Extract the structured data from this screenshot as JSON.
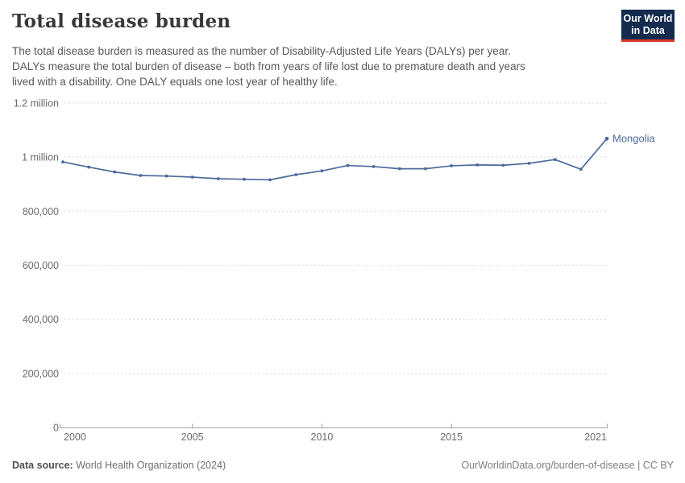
{
  "header": {
    "title": "Total disease burden",
    "subtitle_lines": [
      "The total disease burden is measured as the number of Disability-Adjusted Life Years (DALYs) per year.",
      "DALYs measure the total burden of disease – both from years of life lost due to premature death and years",
      "lived with a disability. One DALY equals one lost year of healthy life."
    ],
    "logo": {
      "line1": "Our World",
      "line2": "in Data",
      "bg_color": "#132b4d",
      "stripe_color": "#d8382f",
      "text_color": "#ffffff"
    }
  },
  "chart_data": {
    "type": "line",
    "title": "Total disease burden",
    "entity": "Mongolia",
    "x": [
      2000,
      2001,
      2002,
      2003,
      2004,
      2005,
      2006,
      2007,
      2008,
      2009,
      2010,
      2011,
      2012,
      2013,
      2014,
      2015,
      2016,
      2017,
      2018,
      2019,
      2020,
      2021
    ],
    "series": [
      {
        "name": "Mongolia",
        "color": "#4c6a9c",
        "values": [
          982000,
          963000,
          945000,
          932000,
          930000,
          926000,
          920000,
          918000,
          916000,
          935000,
          949000,
          969000,
          965000,
          957000,
          957000,
          968000,
          971000,
          970000,
          977000,
          991000,
          955000,
          1068000
        ]
      }
    ],
    "xlim": [
      2000,
      2021
    ],
    "ylim": [
      0,
      1200000
    ],
    "yticks": [
      {
        "value": 0,
        "label": "0"
      },
      {
        "value": 200000,
        "label": "200,000"
      },
      {
        "value": 400000,
        "label": "400,000"
      },
      {
        "value": 600000,
        "label": "600,000"
      },
      {
        "value": 800000,
        "label": "800,000"
      },
      {
        "value": 1000000,
        "label": "1 million"
      },
      {
        "value": 1200000,
        "label": "1.2 million"
      }
    ],
    "xticks": [
      {
        "value": 2000,
        "label": "2000"
      },
      {
        "value": 2005,
        "label": "2005"
      },
      {
        "value": 2010,
        "label": "2010"
      },
      {
        "value": 2015,
        "label": "2015"
      },
      {
        "value": 2021,
        "label": "2021"
      }
    ],
    "grid": "horizontal-dashed",
    "legend_position": "end-of-line",
    "end_label": "Mongolia"
  },
  "footer": {
    "source_label": "Data source:",
    "source_value": "World Health Organization (2024)",
    "link": "OurWorldinData.org/burden-of-disease | CC BY"
  }
}
